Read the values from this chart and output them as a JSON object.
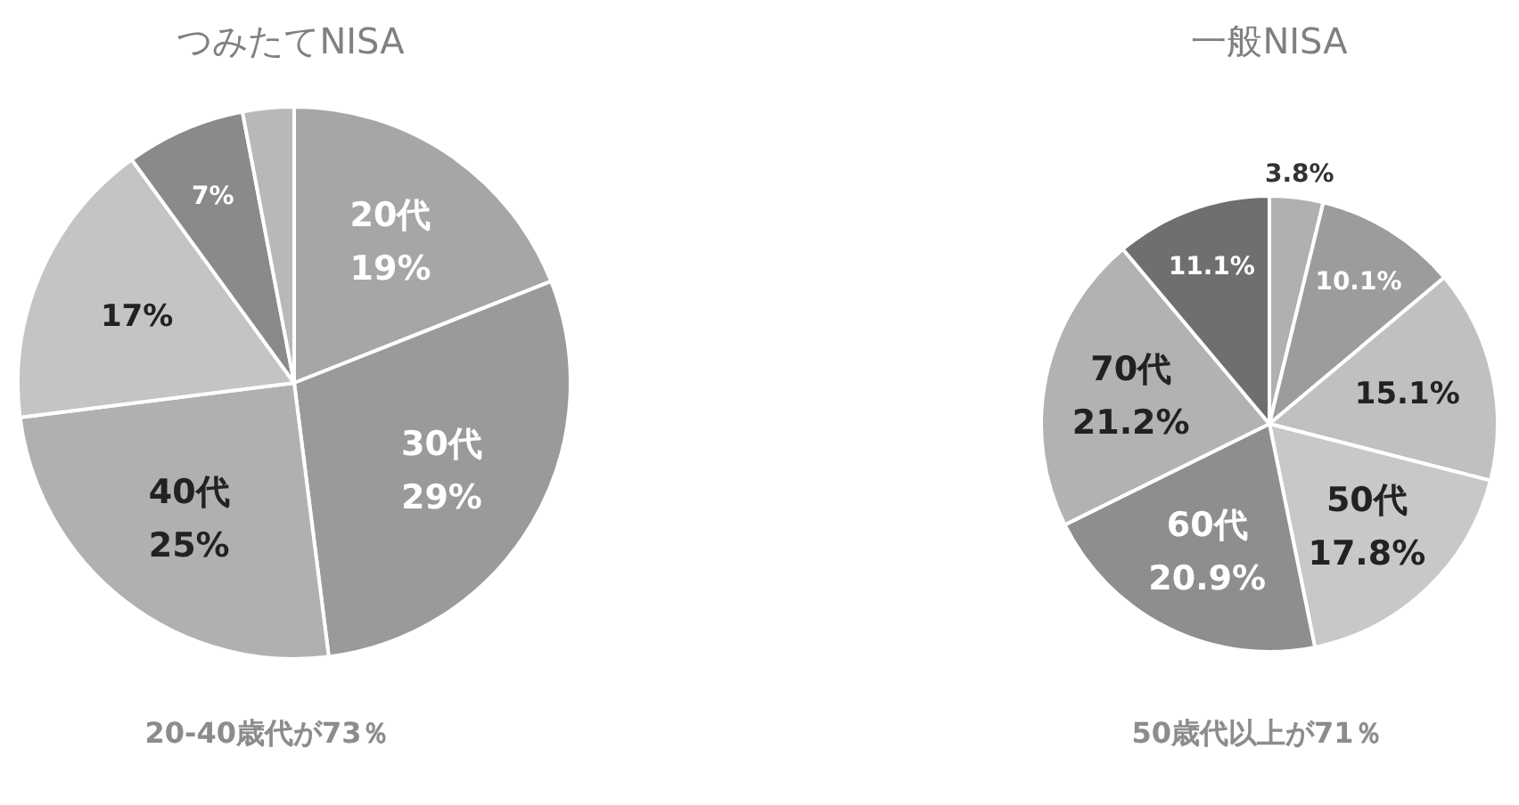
{
  "chart_data": [
    {
      "type": "pie",
      "title": "つみたてNISA",
      "categories": [
        "20代",
        "30代",
        "40代",
        null,
        null,
        null
      ],
      "values": [
        19,
        29,
        25,
        17,
        7,
        3
      ],
      "value_labels": [
        "19%",
        "29%",
        "25%",
        "17%",
        "7%",
        null
      ],
      "colors": [
        "#a6a6a6",
        "#9a9a9a",
        "#b0b0b0",
        "#c4c4c4",
        "#8a8a8a",
        "#b8b8b8"
      ],
      "annotations": [
        "20-40歳代が73％"
      ]
    },
    {
      "type": "pie",
      "title": "一般NISA",
      "categories": [
        null,
        null,
        null,
        "50代",
        "60代",
        "70代",
        null
      ],
      "values": [
        3.8,
        10.1,
        15.1,
        17.8,
        20.9,
        21.2,
        11.1
      ],
      "value_labels": [
        "3.8%",
        "10.1%",
        "15.1%",
        "17.8%",
        "20.9%",
        "21.2%",
        "11.1%"
      ],
      "colors": [
        "#b0b0b0",
        "#9c9c9c",
        "#c0c0c0",
        "#c8c8c8",
        "#8e8e8e",
        "#b2b2b2",
        "#6f6f6f"
      ],
      "annotations": [
        "50歳代以上が71％"
      ]
    }
  ]
}
